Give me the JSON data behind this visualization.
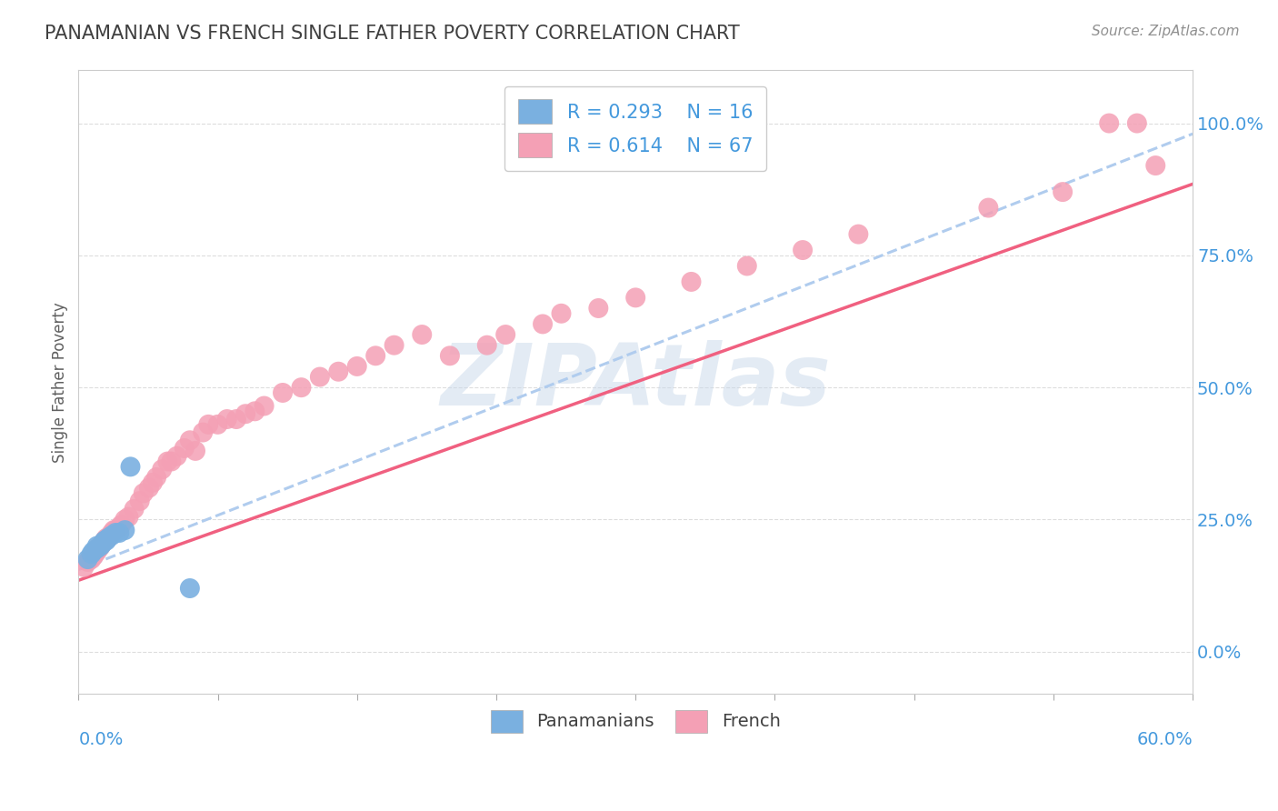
{
  "title": "PANAMANIAN VS FRENCH SINGLE FATHER POVERTY CORRELATION CHART",
  "source": "Source: ZipAtlas.com",
  "ylabel": "Single Father Poverty",
  "right_yticks": [
    0.0,
    0.25,
    0.5,
    0.75,
    1.0
  ],
  "right_yticklabels": [
    "0.0%",
    "25.0%",
    "50.0%",
    "75.0%",
    "100.0%"
  ],
  "xlim": [
    0.0,
    0.6
  ],
  "ylim": [
    -0.08,
    1.1
  ],
  "panamanian_R": 0.293,
  "panamanian_N": 16,
  "french_R": 0.614,
  "french_N": 67,
  "panamanian_color": "#7ab0e0",
  "french_color": "#f4a0b5",
  "panamanian_trend_color": "#b0ccee",
  "french_trend_color": "#f06080",
  "watermark_color": "#c8d8ea",
  "title_color": "#404040",
  "source_color": "#909090",
  "axis_color": "#4499dd",
  "panamanian_x": [
    0.005,
    0.007,
    0.008,
    0.01,
    0.01,
    0.012,
    0.013,
    0.014,
    0.015,
    0.016,
    0.018,
    0.02,
    0.022,
    0.025,
    0.028,
    0.06
  ],
  "panamanian_y": [
    0.175,
    0.185,
    0.19,
    0.195,
    0.2,
    0.2,
    0.205,
    0.21,
    0.21,
    0.215,
    0.22,
    0.225,
    0.225,
    0.23,
    0.35,
    0.12
  ],
  "french_x": [
    0.003,
    0.005,
    0.006,
    0.007,
    0.008,
    0.009,
    0.01,
    0.01,
    0.011,
    0.012,
    0.013,
    0.014,
    0.015,
    0.016,
    0.017,
    0.018,
    0.019,
    0.02,
    0.022,
    0.023,
    0.025,
    0.027,
    0.03,
    0.033,
    0.035,
    0.038,
    0.04,
    0.042,
    0.045,
    0.048,
    0.05,
    0.053,
    0.057,
    0.06,
    0.063,
    0.067,
    0.07,
    0.075,
    0.08,
    0.085,
    0.09,
    0.095,
    0.1,
    0.11,
    0.12,
    0.13,
    0.14,
    0.15,
    0.16,
    0.17,
    0.185,
    0.2,
    0.22,
    0.23,
    0.25,
    0.26,
    0.28,
    0.3,
    0.33,
    0.36,
    0.39,
    0.42,
    0.49,
    0.53,
    0.555,
    0.57,
    0.58
  ],
  "french_y": [
    0.16,
    0.17,
    0.175,
    0.175,
    0.18,
    0.185,
    0.19,
    0.195,
    0.195,
    0.2,
    0.205,
    0.21,
    0.215,
    0.215,
    0.22,
    0.225,
    0.23,
    0.23,
    0.235,
    0.24,
    0.25,
    0.255,
    0.27,
    0.285,
    0.3,
    0.31,
    0.32,
    0.33,
    0.345,
    0.36,
    0.36,
    0.37,
    0.385,
    0.4,
    0.38,
    0.415,
    0.43,
    0.43,
    0.44,
    0.44,
    0.45,
    0.455,
    0.465,
    0.49,
    0.5,
    0.52,
    0.53,
    0.54,
    0.56,
    0.58,
    0.6,
    0.56,
    0.58,
    0.6,
    0.62,
    0.64,
    0.65,
    0.67,
    0.7,
    0.73,
    0.76,
    0.79,
    0.84,
    0.87,
    1.0,
    1.0,
    0.92
  ],
  "pan_trend_x0": 0.0,
  "pan_trend_x1": 0.6,
  "pan_trend_y0": 0.155,
  "pan_trend_y1": 0.98,
  "fr_trend_x0": 0.0,
  "fr_trend_x1": 0.6,
  "fr_trend_y0": 0.135,
  "fr_trend_y1": 0.885
}
